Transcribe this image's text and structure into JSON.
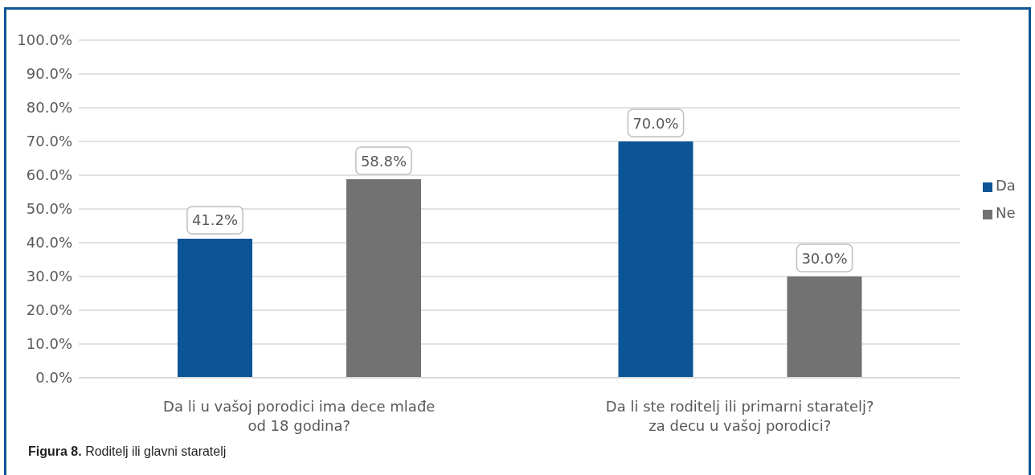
{
  "chart_data": {
    "type": "bar",
    "title": "Figura 8. Roditelj ili glavni staratelj",
    "categories": [
      "Da li u vašoj porodici ima dece mlađe od 18 godina?",
      "Da li ste roditelj ili primarni staratelj? za decu u vašoj porodici?"
    ],
    "series": [
      {
        "name": "Da",
        "color": "#0b5597",
        "values": [
          41.2,
          70.0
        ],
        "value_labels": [
          "41.2%",
          "70.0%"
        ]
      },
      {
        "name": "Ne",
        "color": "#727272",
        "values": [
          58.8,
          30.0
        ],
        "value_labels": [
          "58.8%",
          "30.0%"
        ]
      }
    ],
    "ylim": [
      0,
      100
    ],
    "yticks": [
      {
        "value": 0,
        "label": "0.0%"
      },
      {
        "value": 10,
        "label": "10.0%"
      },
      {
        "value": 20,
        "label": "20.0%"
      },
      {
        "value": 30,
        "label": "30.0%"
      },
      {
        "value": 40,
        "label": "40.0%"
      },
      {
        "value": 50,
        "label": "50.0%"
      },
      {
        "value": 60,
        "label": "60.0%"
      },
      {
        "value": 70,
        "label": "70.0%"
      },
      {
        "value": 80,
        "label": "80.0%"
      },
      {
        "value": 90,
        "label": "90.0%"
      },
      {
        "value": 100,
        "label": "100.0%"
      }
    ],
    "grid": "y",
    "legend": "right"
  }
}
